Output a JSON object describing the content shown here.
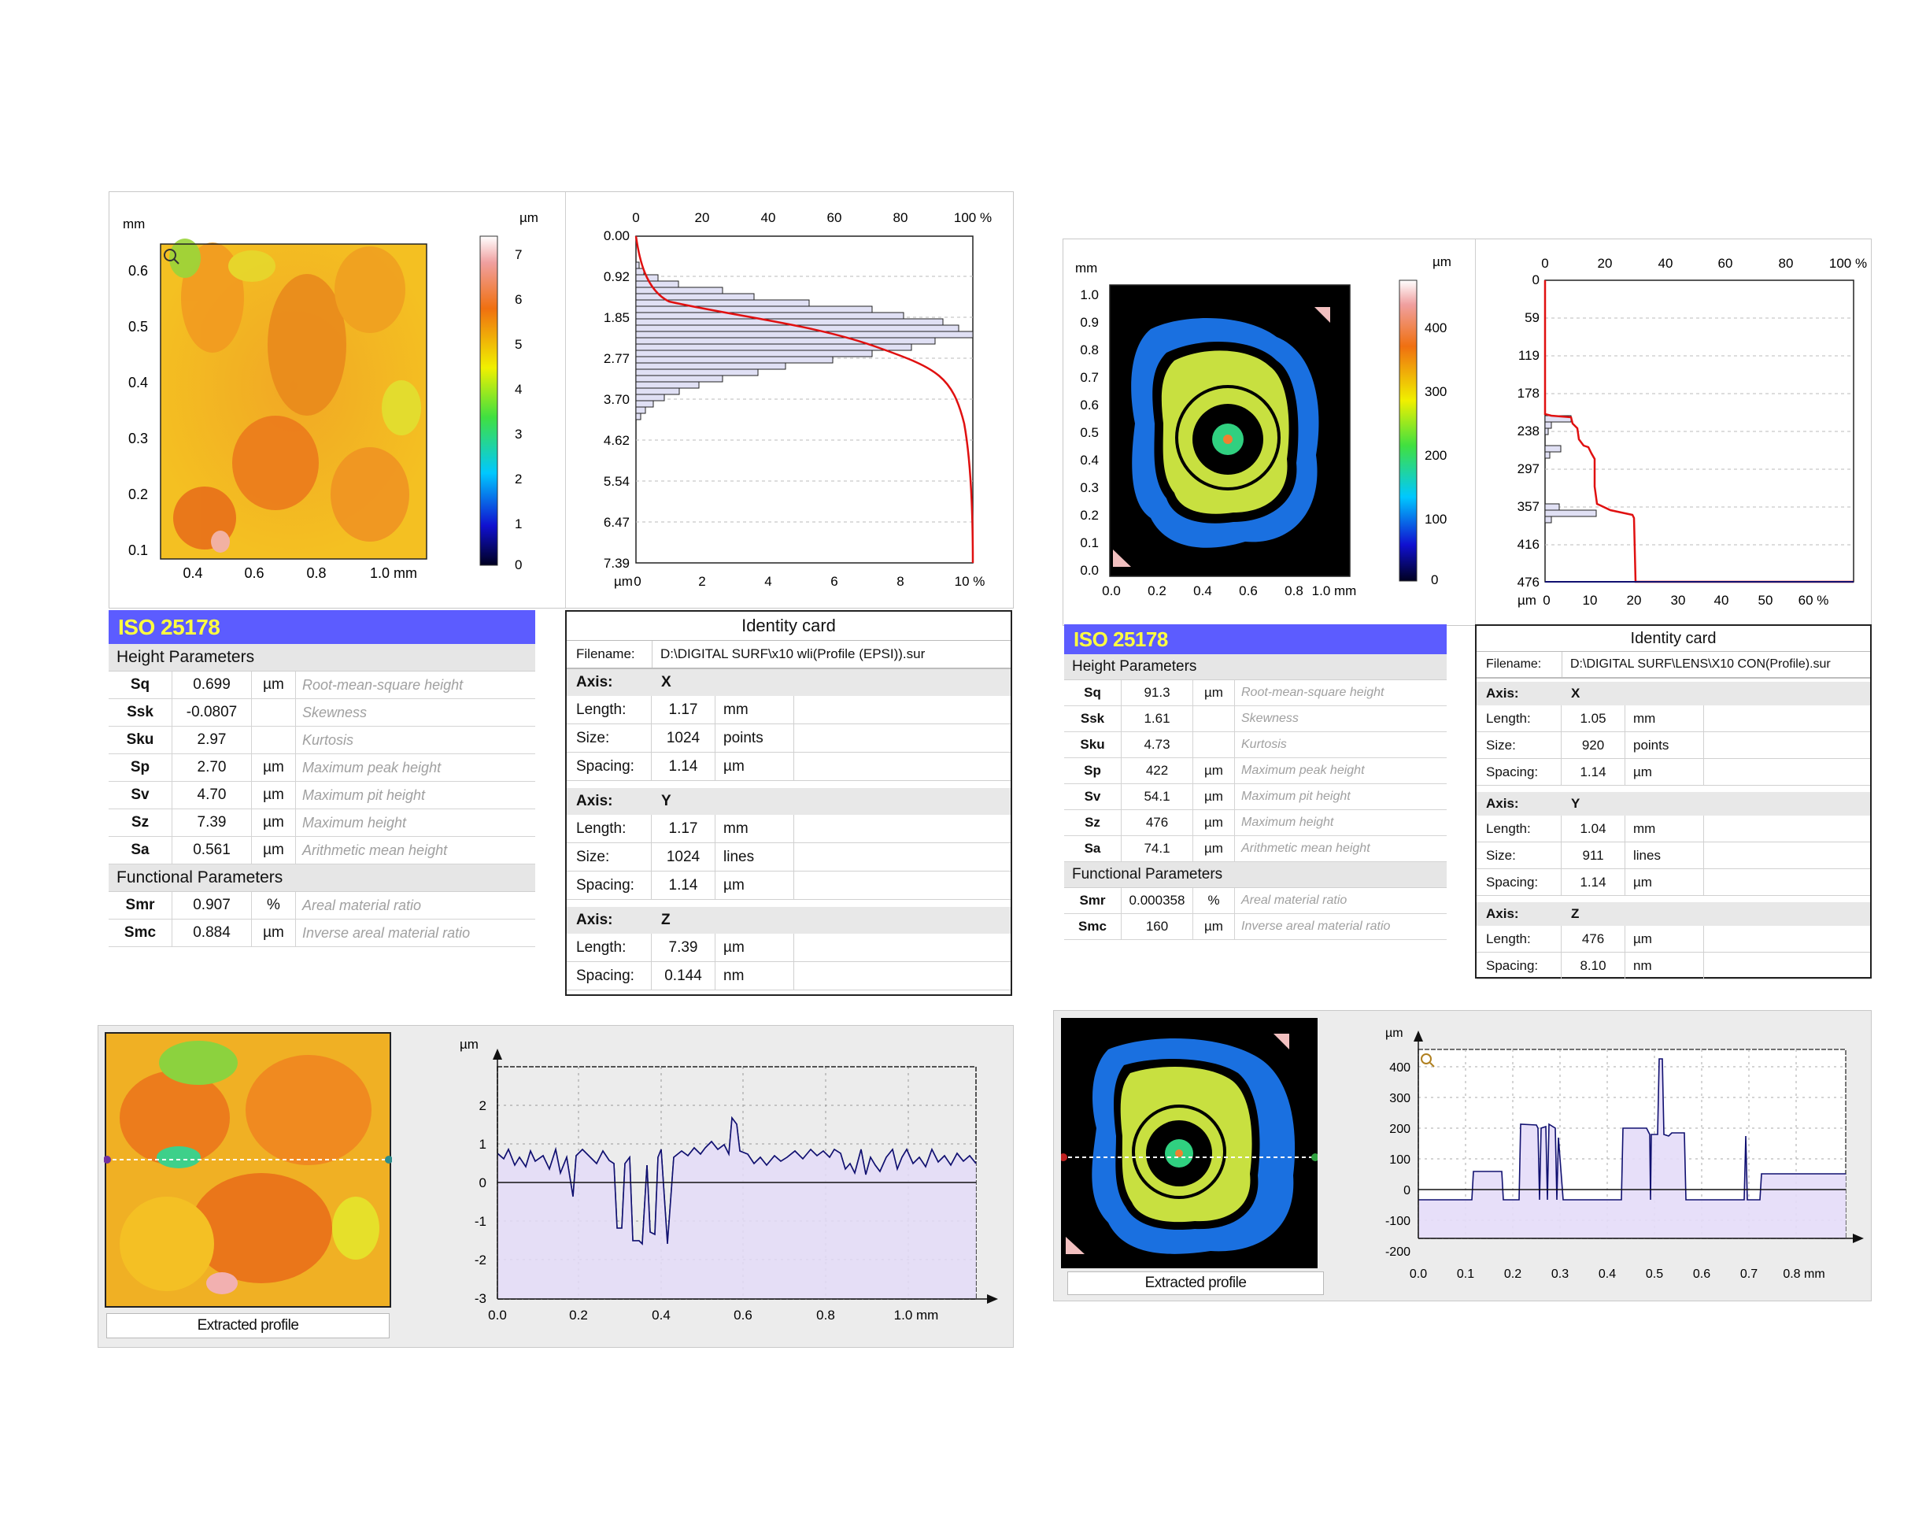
{
  "left": {
    "map": {
      "x_unit": "mm",
      "z_unit": "µm",
      "x_ticks": [
        "0.4",
        "0.6",
        "0.8",
        "1.0 mm"
      ],
      "y_ticks": [
        "0.6",
        "0.5",
        "0.4",
        "0.3",
        "0.2",
        "0.1"
      ],
      "scale_ticks": [
        "7",
        "6",
        "5",
        "4",
        "3",
        "2",
        "1",
        "0"
      ]
    },
    "histogram": {
      "top_ticks": [
        "0",
        "20",
        "40",
        "60",
        "80",
        "100 %"
      ],
      "bottom_ticks": [
        "0",
        "2",
        "4",
        "6",
        "8",
        "10 %"
      ],
      "y_ticks": [
        "0.00",
        "0.92",
        "1.85",
        "2.77",
        "3.70",
        "4.62",
        "5.54",
        "6.47",
        "7.39"
      ],
      "y_unit": "µm"
    },
    "iso": {
      "title": "ISO 25178",
      "height_section": "Height Parameters",
      "functional_section": "Functional Parameters",
      "height_rows": [
        {
          "name": "Sq",
          "value": "0.699",
          "unit": "µm",
          "desc": "Root-mean-square height"
        },
        {
          "name": "Ssk",
          "value": "-0.0807",
          "unit": "",
          "desc": "Skewness"
        },
        {
          "name": "Sku",
          "value": "2.97",
          "unit": "",
          "desc": "Kurtosis"
        },
        {
          "name": "Sp",
          "value": "2.70",
          "unit": "µm",
          "desc": "Maximum peak height"
        },
        {
          "name": "Sv",
          "value": "4.70",
          "unit": "µm",
          "desc": "Maximum pit height"
        },
        {
          "name": "Sz",
          "value": "7.39",
          "unit": "µm",
          "desc": "Maximum height"
        },
        {
          "name": "Sa",
          "value": "0.561",
          "unit": "µm",
          "desc": "Arithmetic mean height"
        }
      ],
      "functional_rows": [
        {
          "name": "Smr",
          "value": "0.907",
          "unit": "%",
          "desc": "Areal material ratio"
        },
        {
          "name": "Smc",
          "value": "0.884",
          "unit": "µm",
          "desc": "Inverse areal material ratio"
        }
      ]
    },
    "identity": {
      "title": "Identity card",
      "filename_label": "Filename:",
      "filename": "D:\\DIGITAL SURF\\x10 wli(Profile (EPSI)).sur",
      "axes": [
        {
          "label": "Axis:",
          "name": "X",
          "rows": [
            {
              "label": "Length:",
              "value": "1.17",
              "unit": "mm"
            },
            {
              "label": "Size:",
              "value": "1024",
              "unit": "points"
            },
            {
              "label": "Spacing:",
              "value": "1.14",
              "unit": "µm"
            }
          ]
        },
        {
          "label": "Axis:",
          "name": "Y",
          "rows": [
            {
              "label": "Length:",
              "value": "1.17",
              "unit": "mm"
            },
            {
              "label": "Size:",
              "value": "1024",
              "unit": "lines"
            },
            {
              "label": "Spacing:",
              "value": "1.14",
              "unit": "µm"
            }
          ]
        },
        {
          "label": "Axis:",
          "name": "Z",
          "rows": [
            {
              "label": "Length:",
              "value": "7.39",
              "unit": "µm"
            },
            {
              "label": "Spacing:",
              "value": "0.144",
              "unit": "nm"
            }
          ]
        }
      ]
    },
    "profile": {
      "caption": "Extracted profile",
      "y_unit": "µm",
      "y_ticks": [
        "2",
        "1",
        "0",
        "-1",
        "-2",
        "-3"
      ],
      "x_ticks": [
        "0.0",
        "0.2",
        "0.4",
        "0.6",
        "0.8",
        "1.0 mm"
      ]
    }
  },
  "right": {
    "map": {
      "x_unit": "mm",
      "z_unit": "µm",
      "x_ticks": [
        "0.0",
        "0.2",
        "0.4",
        "0.6",
        "0.8",
        "1.0 mm"
      ],
      "y_ticks": [
        "1.0",
        "0.9",
        "0.8",
        "0.7",
        "0.6",
        "0.5",
        "0.4",
        "0.3",
        "0.2",
        "0.1",
        "0.0"
      ],
      "scale_ticks": [
        "400",
        "300",
        "200",
        "100",
        "0"
      ]
    },
    "histogram": {
      "top_ticks": [
        "0",
        "20",
        "40",
        "60",
        "80",
        "100 %"
      ],
      "bottom_ticks": [
        "0",
        "10",
        "20",
        "30",
        "40",
        "50",
        "60 %"
      ],
      "y_ticks": [
        "0",
        "59",
        "119",
        "178",
        "238",
        "297",
        "357",
        "416",
        "476"
      ],
      "y_unit": "µm"
    },
    "iso": {
      "title": "ISO 25178",
      "height_section": "Height Parameters",
      "functional_section": "Functional Parameters",
      "height_rows": [
        {
          "name": "Sq",
          "value": "91.3",
          "unit": "µm",
          "desc": "Root-mean-square height"
        },
        {
          "name": "Ssk",
          "value": "1.61",
          "unit": "",
          "desc": "Skewness"
        },
        {
          "name": "Sku",
          "value": "4.73",
          "unit": "",
          "desc": "Kurtosis"
        },
        {
          "name": "Sp",
          "value": "422",
          "unit": "µm",
          "desc": "Maximum peak height"
        },
        {
          "name": "Sv",
          "value": "54.1",
          "unit": "µm",
          "desc": "Maximum pit height"
        },
        {
          "name": "Sz",
          "value": "476",
          "unit": "µm",
          "desc": "Maximum height"
        },
        {
          "name": "Sa",
          "value": "74.1",
          "unit": "µm",
          "desc": "Arithmetic mean height"
        }
      ],
      "functional_rows": [
        {
          "name": "Smr",
          "value": "0.000358",
          "unit": "%",
          "desc": "Areal material ratio"
        },
        {
          "name": "Smc",
          "value": "160",
          "unit": "µm",
          "desc": "Inverse areal material ratio"
        }
      ]
    },
    "identity": {
      "title": "Identity card",
      "filename_label": "Filename:",
      "filename": "D:\\DIGITAL SURF\\LENS\\X10 CON(Profile).sur",
      "axes": [
        {
          "label": "Axis:",
          "name": "X",
          "rows": [
            {
              "label": "Length:",
              "value": "1.05",
              "unit": "mm"
            },
            {
              "label": "Size:",
              "value": "920",
              "unit": "points"
            },
            {
              "label": "Spacing:",
              "value": "1.14",
              "unit": "µm"
            }
          ]
        },
        {
          "label": "Axis:",
          "name": "Y",
          "rows": [
            {
              "label": "Length:",
              "value": "1.04",
              "unit": "mm"
            },
            {
              "label": "Size:",
              "value": "911",
              "unit": "lines"
            },
            {
              "label": "Spacing:",
              "value": "1.14",
              "unit": "µm"
            }
          ]
        },
        {
          "label": "Axis:",
          "name": "Z",
          "rows": [
            {
              "label": "Length:",
              "value": "476",
              "unit": "µm"
            },
            {
              "label": "Spacing:",
              "value": "8.10",
              "unit": "nm"
            }
          ]
        }
      ]
    },
    "profile": {
      "caption": "Extracted profile",
      "y_unit": "µm",
      "y_ticks": [
        "400",
        "300",
        "200",
        "100",
        "0",
        "-100",
        "-200"
      ],
      "x_ticks": [
        "0.0",
        "0.1",
        "0.2",
        "0.3",
        "0.4",
        "0.5",
        "0.6",
        "0.7",
        "0.8 mm"
      ]
    }
  },
  "colors": {
    "accent": "#5c5cff",
    "iso_title_text": "#ffff40",
    "curve": "#e01010",
    "profile_line": "#101070",
    "profile_fill": "#e4dcf8",
    "hist_bar": "#e0e0f4"
  }
}
